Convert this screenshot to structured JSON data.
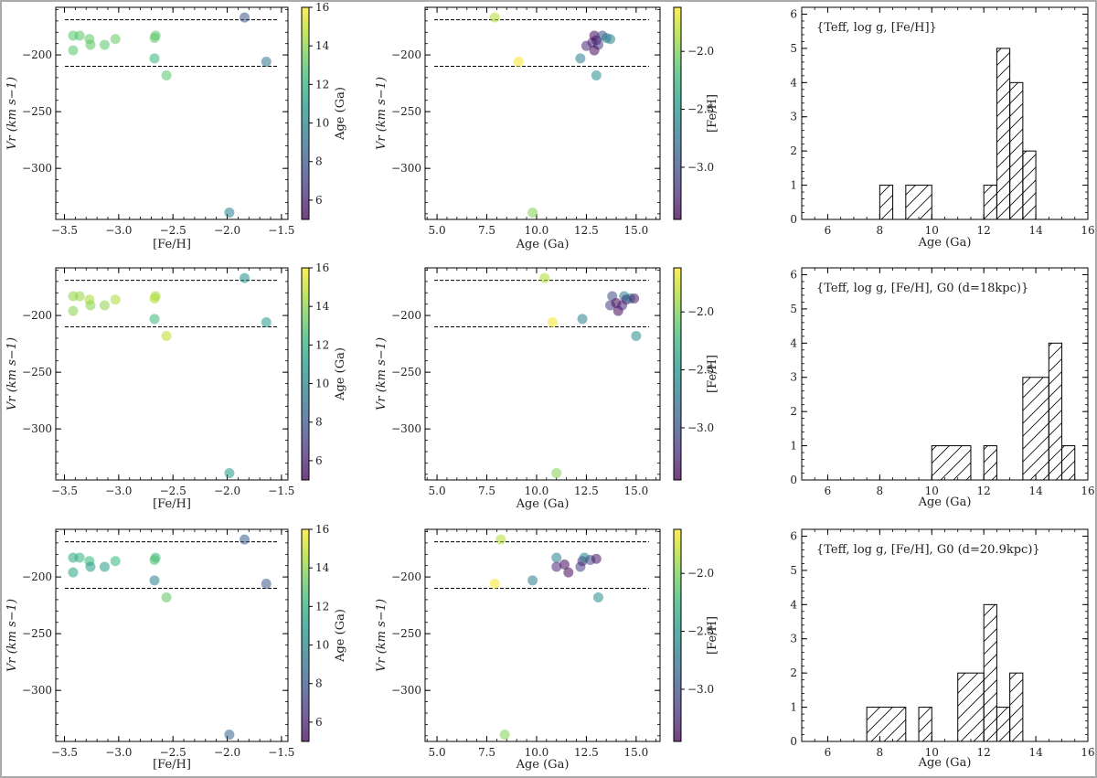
{
  "figure": {
    "border_color": "#aaaaaa"
  },
  "colormap": [
    "#440154",
    "#482878",
    "#3e4989",
    "#31688e",
    "#26828e",
    "#1f9e89",
    "#35b779",
    "#6ece58",
    "#b5de2b",
    "#fde725"
  ],
  "chart_data": [
    {
      "id": "r1-feh",
      "type": "scatter",
      "xlabel": "[Fe/H]",
      "ylabel": "Vr (km s−1)",
      "xlim": [
        -3.58,
        -1.44
      ],
      "ylim": [
        -345,
        -158
      ],
      "xticks": [
        -3.5,
        -3.0,
        -2.5,
        -2.0,
        -1.5
      ],
      "xticklabels": [
        "−3.5",
        "−3.0",
        "−2.5",
        "−2.0",
        "−1.5"
      ],
      "yticks": [
        -200,
        -250,
        -300
      ],
      "yticklabels": [
        "−200",
        "−250",
        "−300"
      ],
      "hlines": [
        -169,
        -210
      ],
      "colorbar": {
        "label": "Age (Ga)",
        "range": [
          5,
          16
        ],
        "ticks": [
          6,
          8,
          10,
          12,
          14,
          16
        ],
        "ticklabels": [
          "6",
          "8",
          "10",
          "12",
          "14",
          "16"
        ]
      },
      "points": [
        {
          "x": -3.42,
          "y": -183,
          "c": 13.0
        },
        {
          "x": -3.36,
          "y": -183,
          "c": 13.0
        },
        {
          "x": -3.42,
          "y": -196,
          "c": 13.0
        },
        {
          "x": -3.27,
          "y": -186,
          "c": 13.2
        },
        {
          "x": -3.26,
          "y": -191,
          "c": 13.2
        },
        {
          "x": -3.13,
          "y": -191,
          "c": 13.0
        },
        {
          "x": -3.03,
          "y": -186,
          "c": 13.3
        },
        {
          "x": -2.66,
          "y": -183,
          "c": 13.0
        },
        {
          "x": -2.67,
          "y": -185,
          "c": 13.2
        },
        {
          "x": -2.67,
          "y": -203,
          "c": 12.3
        },
        {
          "x": -2.56,
          "y": -218,
          "c": 13.0
        },
        {
          "x": -1.84,
          "y": -167,
          "c": 7.9
        },
        {
          "x": -1.64,
          "y": -206,
          "c": 9.1
        },
        {
          "x": -1.98,
          "y": -339,
          "c": 9.8
        }
      ]
    },
    {
      "id": "r1-age",
      "type": "scatter",
      "xlabel": "Age (Ga)",
      "ylabel": "Vr (km s−1)",
      "xlim": [
        4.4,
        16.2
      ],
      "ylim": [
        -345,
        -158
      ],
      "xticks": [
        5.0,
        7.5,
        10.0,
        12.5,
        15.0
      ],
      "xticklabels": [
        "5.0",
        "7.5",
        "10.0",
        "12.5",
        "15.0"
      ],
      "yticks": [
        -200,
        -250,
        -300
      ],
      "yticklabels": [
        "−200",
        "−250",
        "−300"
      ],
      "hlines": [
        -169,
        -210
      ],
      "colorbar": {
        "label": "[Fe/H]",
        "range": [
          -3.45,
          -1.62
        ],
        "ticks": [
          -2.0,
          -2.5,
          -3.0
        ],
        "ticklabels": [
          "−2.0",
          "−2.5",
          "−3.0"
        ]
      },
      "points": [
        {
          "x": 7.9,
          "y": -167,
          "c": -1.84
        },
        {
          "x": 9.1,
          "y": -206,
          "c": -1.64
        },
        {
          "x": 9.8,
          "y": -339,
          "c": -1.98
        },
        {
          "x": 12.2,
          "y": -203,
          "c": -2.67
        },
        {
          "x": 12.5,
          "y": -192,
          "c": -3.26
        },
        {
          "x": 12.8,
          "y": -189,
          "c": -3.27
        },
        {
          "x": 12.9,
          "y": -183,
          "c": -3.42
        },
        {
          "x": 13.0,
          "y": -187,
          "c": -3.36
        },
        {
          "x": 13.1,
          "y": -191,
          "c": -3.13
        },
        {
          "x": 12.9,
          "y": -196,
          "c": -3.42
        },
        {
          "x": 13.3,
          "y": -183,
          "c": -3.03
        },
        {
          "x": 13.5,
          "y": -185,
          "c": -2.66
        },
        {
          "x": 13.7,
          "y": -186,
          "c": -2.67
        },
        {
          "x": 13.0,
          "y": -218,
          "c": -2.56
        }
      ]
    },
    {
      "id": "r1-hist",
      "type": "bar",
      "label": "{Teff, log g, [Fe/H]}",
      "xlabel": "Age (Ga)",
      "xlim": [
        5,
        16
      ],
      "ylim": [
        0,
        6.2
      ],
      "xticks": [
        6,
        8,
        10,
        12,
        14,
        16
      ],
      "xticklabels": [
        "6",
        "8",
        "10",
        "12",
        "14",
        "16"
      ],
      "yticks": [
        0,
        1,
        2,
        3,
        4,
        5,
        6
      ],
      "yticklabels": [
        "0",
        "1",
        "2",
        "3",
        "4",
        "5",
        "6"
      ],
      "bins": [
        {
          "x0": 8.0,
          "x1": 8.5,
          "count": 1
        },
        {
          "x0": 9.0,
          "x1": 10.0,
          "count": 1
        },
        {
          "x0": 12.0,
          "x1": 12.5,
          "count": 1
        },
        {
          "x0": 12.5,
          "x1": 13.0,
          "count": 5
        },
        {
          "x0": 13.0,
          "x1": 13.5,
          "count": 4
        },
        {
          "x0": 13.5,
          "x1": 14.0,
          "count": 2
        }
      ]
    },
    {
      "id": "r2-feh",
      "type": "scatter",
      "xlabel": "[Fe/H]",
      "ylabel": "Vr (km s−1)",
      "xlim": [
        -3.58,
        -1.44
      ],
      "ylim": [
        -345,
        -158
      ],
      "xticks": [
        -3.5,
        -3.0,
        -2.5,
        -2.0,
        -1.5
      ],
      "xticklabels": [
        "−3.5",
        "−3.0",
        "−2.5",
        "−2.0",
        "−1.5"
      ],
      "yticks": [
        -200,
        -250,
        -300
      ],
      "yticklabels": [
        "−200",
        "−250",
        "−300"
      ],
      "hlines": [
        -169,
        -210
      ],
      "colorbar": {
        "label": "Age (Ga)",
        "range": [
          5,
          16
        ],
        "ticks": [
          6,
          8,
          10,
          12,
          14,
          16
        ],
        "ticklabels": [
          "6",
          "8",
          "10",
          "12",
          "14",
          "16"
        ]
      },
      "points": [
        {
          "x": -3.42,
          "y": -183,
          "c": 14.1
        },
        {
          "x": -3.36,
          "y": -183,
          "c": 14.2
        },
        {
          "x": -3.42,
          "y": -196,
          "c": 13.9
        },
        {
          "x": -3.27,
          "y": -186,
          "c": 14.5
        },
        {
          "x": -3.26,
          "y": -191,
          "c": 14.0
        },
        {
          "x": -3.13,
          "y": -191,
          "c": 14.0
        },
        {
          "x": -3.03,
          "y": -186,
          "c": 14.6
        },
        {
          "x": -2.66,
          "y": -183,
          "c": 14.4
        },
        {
          "x": -2.67,
          "y": -185,
          "c": 14.7
        },
        {
          "x": -2.67,
          "y": -203,
          "c": 12.3
        },
        {
          "x": -2.56,
          "y": -218,
          "c": 14.9
        },
        {
          "x": -1.84,
          "y": -167,
          "c": 10.4
        },
        {
          "x": -1.64,
          "y": -206,
          "c": 10.8
        },
        {
          "x": -1.98,
          "y": -339,
          "c": 11.0
        }
      ]
    },
    {
      "id": "r2-age",
      "type": "scatter",
      "xlabel": "Age (Ga)",
      "ylabel": "Vr (km s−1)",
      "xlim": [
        4.4,
        16.2
      ],
      "ylim": [
        -345,
        -158
      ],
      "xticks": [
        5.0,
        7.5,
        10.0,
        12.5,
        15.0
      ],
      "xticklabels": [
        "5.0",
        "7.5",
        "10.0",
        "12.5",
        "15.0"
      ],
      "yticks": [
        -200,
        -250,
        -300
      ],
      "yticklabels": [
        "−200",
        "−250",
        "−300"
      ],
      "hlines": [
        -169,
        -210
      ],
      "colorbar": {
        "label": "[Fe/H]",
        "range": [
          -3.45,
          -1.62
        ],
        "ticks": [
          -2.0,
          -2.5,
          -3.0
        ],
        "ticklabels": [
          "−2.0",
          "−2.5",
          "−3.0"
        ]
      },
      "points": [
        {
          "x": 10.4,
          "y": -167,
          "c": -1.84
        },
        {
          "x": 10.8,
          "y": -206,
          "c": -1.64
        },
        {
          "x": 11.0,
          "y": -339,
          "c": -1.98
        },
        {
          "x": 12.3,
          "y": -203,
          "c": -2.67
        },
        {
          "x": 13.8,
          "y": -183,
          "c": -3.03
        },
        {
          "x": 13.7,
          "y": -191,
          "c": -3.13
        },
        {
          "x": 14.0,
          "y": -189,
          "c": -3.42
        },
        {
          "x": 14.1,
          "y": -196,
          "c": -3.42
        },
        {
          "x": 14.4,
          "y": -183,
          "c": -2.66
        },
        {
          "x": 14.5,
          "y": -186,
          "c": -3.27
        },
        {
          "x": 14.3,
          "y": -191,
          "c": -3.26
        },
        {
          "x": 14.7,
          "y": -185,
          "c": -2.67
        },
        {
          "x": 14.9,
          "y": -185,
          "c": -3.36
        },
        {
          "x": 15.0,
          "y": -218,
          "c": -2.56
        }
      ]
    },
    {
      "id": "r2-hist",
      "type": "bar",
      "label": "{Teff, log g, [Fe/H], G0 (d=18kpc)}",
      "xlabel": "Age (Ga)",
      "xlim": [
        5,
        16
      ],
      "ylim": [
        0,
        6.2
      ],
      "xticks": [
        6,
        8,
        10,
        12,
        14,
        16
      ],
      "xticklabels": [
        "6",
        "8",
        "10",
        "12",
        "14",
        "16"
      ],
      "yticks": [
        0,
        1,
        2,
        3,
        4,
        5,
        6
      ],
      "yticklabels": [
        "0",
        "1",
        "2",
        "3",
        "4",
        "5",
        "6"
      ],
      "bins": [
        {
          "x0": 10.0,
          "x1": 11.5,
          "count": 1
        },
        {
          "x0": 12.0,
          "x1": 12.5,
          "count": 1
        },
        {
          "x0": 13.5,
          "x1": 14.5,
          "count": 3
        },
        {
          "x0": 14.5,
          "x1": 15.0,
          "count": 4
        },
        {
          "x0": 15.0,
          "x1": 15.5,
          "count": 1
        }
      ]
    },
    {
      "id": "r3-feh",
      "type": "scatter",
      "xlabel": "[Fe/H]",
      "ylabel": "Vr (km s−1)",
      "xlim": [
        -3.58,
        -1.44
      ],
      "ylim": [
        -345,
        -158
      ],
      "xticks": [
        -3.5,
        -3.0,
        -2.5,
        -2.0,
        -1.5
      ],
      "xticklabels": [
        "−3.5",
        "−3.0",
        "−2.5",
        "−2.0",
        "−1.5"
      ],
      "yticks": [
        -200,
        -250,
        -300
      ],
      "yticklabels": [
        "−200",
        "−250",
        "−300"
      ],
      "hlines": [
        -169,
        -210
      ],
      "colorbar": {
        "label": "Age (Ga)",
        "range": [
          5,
          16
        ],
        "ticks": [
          6,
          8,
          10,
          12,
          14,
          16
        ],
        "ticklabels": [
          "6",
          "8",
          "10",
          "12",
          "14",
          "16"
        ]
      },
      "points": [
        {
          "x": -3.42,
          "y": -183,
          "c": 11.5
        },
        {
          "x": -3.36,
          "y": -183,
          "c": 12.0
        },
        {
          "x": -3.42,
          "y": -196,
          "c": 11.4
        },
        {
          "x": -3.27,
          "y": -186,
          "c": 12.3
        },
        {
          "x": -3.26,
          "y": -191,
          "c": 11.0
        },
        {
          "x": -3.13,
          "y": -191,
          "c": 11.0
        },
        {
          "x": -3.03,
          "y": -186,
          "c": 12.2
        },
        {
          "x": -2.66,
          "y": -183,
          "c": 12.4
        },
        {
          "x": -2.67,
          "y": -185,
          "c": 12.7
        },
        {
          "x": -2.67,
          "y": -203,
          "c": 9.8
        },
        {
          "x": -2.56,
          "y": -218,
          "c": 13.1
        },
        {
          "x": -1.84,
          "y": -167,
          "c": 8.2
        },
        {
          "x": -1.64,
          "y": -206,
          "c": 7.9
        },
        {
          "x": -1.98,
          "y": -339,
          "c": 8.4
        }
      ]
    },
    {
      "id": "r3-age",
      "type": "scatter",
      "xlabel": "Age (Ga)",
      "ylabel": "Vr (km s−1)",
      "xlim": [
        4.4,
        16.2
      ],
      "ylim": [
        -345,
        -158
      ],
      "xticks": [
        5.0,
        7.5,
        10.0,
        12.5,
        15.0
      ],
      "xticklabels": [
        "5.0",
        "7.5",
        "10.0",
        "12.5",
        "15.0"
      ],
      "yticks": [
        -200,
        -250,
        -300
      ],
      "yticklabels": [
        "−200",
        "−250",
        "−300"
      ],
      "hlines": [
        -169,
        -210
      ],
      "colorbar": {
        "label": "[Fe/H]",
        "range": [
          -3.45,
          -1.62
        ],
        "ticks": [
          -2.0,
          -2.5,
          -3.0
        ],
        "ticklabels": [
          "−2.0",
          "−2.5",
          "−3.0"
        ]
      },
      "points": [
        {
          "x": 8.2,
          "y": -167,
          "c": -1.84
        },
        {
          "x": 7.9,
          "y": -206,
          "c": -1.64
        },
        {
          "x": 8.4,
          "y": -339,
          "c": -1.98
        },
        {
          "x": 9.8,
          "y": -203,
          "c": -2.67
        },
        {
          "x": 11.0,
          "y": -183,
          "c": -2.66
        },
        {
          "x": 11.0,
          "y": -191,
          "c": -3.26
        },
        {
          "x": 11.4,
          "y": -189,
          "c": -3.42
        },
        {
          "x": 11.6,
          "y": -196,
          "c": -3.42
        },
        {
          "x": 12.2,
          "y": -191,
          "c": -3.13
        },
        {
          "x": 12.3,
          "y": -186,
          "c": -3.27
        },
        {
          "x": 12.4,
          "y": -183,
          "c": -2.66
        },
        {
          "x": 12.7,
          "y": -185,
          "c": -3.03
        },
        {
          "x": 13.0,
          "y": -184,
          "c": -3.36
        },
        {
          "x": 13.1,
          "y": -218,
          "c": -2.56
        }
      ]
    },
    {
      "id": "r3-hist",
      "type": "bar",
      "label": "{Teff, log g, [Fe/H], G0 (d=20.9kpc)}",
      "xlabel": "Age (Ga)",
      "xlim": [
        5,
        16
      ],
      "ylim": [
        0,
        6.2
      ],
      "xticks": [
        6,
        8,
        10,
        12,
        14,
        16
      ],
      "xticklabels": [
        "6",
        "8",
        "10",
        "12",
        "14",
        "16"
      ],
      "yticks": [
        0,
        1,
        2,
        3,
        4,
        5,
        6
      ],
      "yticklabels": [
        "0",
        "1",
        "2",
        "3",
        "4",
        "5",
        "6"
      ],
      "bins": [
        {
          "x0": 7.5,
          "x1": 9.0,
          "count": 1
        },
        {
          "x0": 9.5,
          "x1": 10.0,
          "count": 1
        },
        {
          "x0": 11.0,
          "x1": 12.0,
          "count": 2
        },
        {
          "x0": 12.0,
          "x1": 12.5,
          "count": 4
        },
        {
          "x0": 12.5,
          "x1": 13.0,
          "count": 1
        },
        {
          "x0": 13.0,
          "x1": 13.5,
          "count": 2
        }
      ]
    }
  ]
}
